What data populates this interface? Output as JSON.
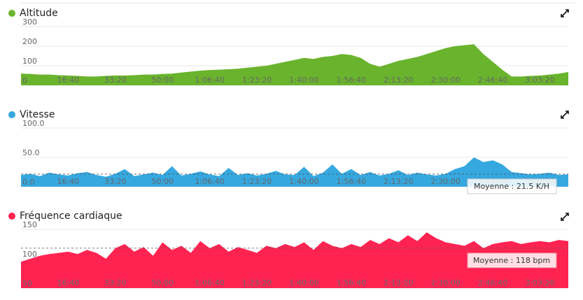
{
  "chart_data": [
    {
      "type": "area",
      "title": "Altitude",
      "color": "#6ab42d",
      "x": [
        0,
        200,
        400,
        600,
        800,
        1000,
        1200,
        1400,
        1600,
        1800,
        2000,
        2200,
        2400,
        2600,
        2800,
        3000,
        3200,
        3400,
        3600,
        3800,
        4000,
        4200,
        4400,
        4600,
        4800,
        5000,
        5200,
        5400,
        5600,
        5800,
        6000,
        6200,
        6400,
        6600,
        6800,
        7000,
        7200,
        7400,
        7600,
        7800,
        8000,
        8200,
        8400,
        8600,
        8800,
        9000,
        9200,
        9400,
        9600,
        9800,
        10000,
        10200,
        10400,
        10600,
        10800,
        11000,
        11200,
        11400,
        11600
      ],
      "values": [
        60,
        58,
        55,
        55,
        52,
        50,
        48,
        45,
        45,
        48,
        50,
        50,
        52,
        55,
        55,
        58,
        60,
        65,
        70,
        75,
        78,
        80,
        82,
        85,
        90,
        95,
        100,
        110,
        120,
        130,
        140,
        135,
        145,
        150,
        160,
        155,
        140,
        110,
        95,
        110,
        125,
        135,
        145,
        160,
        175,
        190,
        200,
        205,
        210,
        160,
        120,
        80,
        45,
        45,
        48,
        50,
        55,
        60,
        68
      ],
      "xlim": [
        0,
        11600
      ],
      "xticks": [
        {
          "value": 1000,
          "label": "16:40"
        },
        {
          "value": 2000,
          "label": "33:20"
        },
        {
          "value": 3000,
          "label": "50:00"
        },
        {
          "value": 4000,
          "label": "1:06:40"
        },
        {
          "value": 5000,
          "label": "1:23:20"
        },
        {
          "value": 6000,
          "label": "1:40:00"
        },
        {
          "value": 7000,
          "label": "1:56:40"
        },
        {
          "value": 8000,
          "label": "2:13:20"
        },
        {
          "value": 9000,
          "label": "2:30:00"
        },
        {
          "value": 10000,
          "label": "2:46:40"
        },
        {
          "value": 11000,
          "label": "3:03:20"
        }
      ],
      "ylim": [
        0,
        300
      ],
      "yticks": [
        0,
        100,
        200,
        300
      ],
      "grid": true
    },
    {
      "type": "area",
      "title": "Vitesse",
      "color": "#35a8e0",
      "x": [
        0,
        200,
        400,
        600,
        800,
        1000,
        1200,
        1400,
        1600,
        1800,
        2000,
        2200,
        2400,
        2600,
        2800,
        3000,
        3200,
        3400,
        3600,
        3800,
        4000,
        4200,
        4400,
        4600,
        4800,
        5000,
        5200,
        5400,
        5600,
        5800,
        6000,
        6200,
        6400,
        6600,
        6800,
        7000,
        7200,
        7400,
        7600,
        7800,
        8000,
        8200,
        8400,
        8600,
        8800,
        9000,
        9200,
        9400,
        9600,
        9800,
        10000,
        10200,
        10400,
        10600,
        10800,
        11000,
        11200,
        11400,
        11600
      ],
      "values": [
        20,
        22,
        18,
        24,
        21,
        19,
        23,
        25,
        20,
        17,
        22,
        30,
        18,
        21,
        24,
        20,
        35,
        19,
        22,
        26,
        21,
        18,
        32,
        20,
        23,
        19,
        22,
        27,
        21,
        20,
        34,
        18,
        24,
        38,
        22,
        30,
        20,
        25,
        19,
        22,
        28,
        20,
        24,
        21,
        19,
        22,
        30,
        35,
        50,
        42,
        45,
        38,
        25,
        23,
        21,
        22,
        24,
        20,
        21
      ],
      "xlim": [
        0,
        11600
      ],
      "xticks": [
        {
          "value": 1000,
          "label": "16:40"
        },
        {
          "value": 2000,
          "label": "33:20"
        },
        {
          "value": 3000,
          "label": "50:00"
        },
        {
          "value": 4000,
          "label": "1:06:40"
        },
        {
          "value": 5000,
          "label": "1:23:20"
        },
        {
          "value": 6000,
          "label": "1:40:00"
        },
        {
          "value": 7000,
          "label": "1:56:40"
        },
        {
          "value": 8000,
          "label": "2:13:20"
        },
        {
          "value": 9000,
          "label": "2:30:00"
        },
        {
          "value": 10000,
          "label": "2:46:40"
        },
        {
          "value": 11000,
          "label": "3:03:20"
        }
      ],
      "ylim": [
        0,
        100
      ],
      "yticks": [
        {
          "value": 0,
          "label": "0.0"
        },
        {
          "value": 50,
          "label": "50.0"
        },
        {
          "value": 100,
          "label": "100.0"
        }
      ],
      "grid": true,
      "average": 21.5,
      "average_label": "Moyenne : 21.5 K/H"
    },
    {
      "type": "area",
      "title": "Fréquence cardiaque",
      "color": "#ff2352",
      "x": [
        0,
        200,
        400,
        600,
        800,
        1000,
        1200,
        1400,
        1600,
        1800,
        2000,
        2200,
        2400,
        2600,
        2800,
        3000,
        3200,
        3400,
        3600,
        3800,
        4000,
        4200,
        4400,
        4600,
        4800,
        5000,
        5200,
        5400,
        5600,
        5800,
        6000,
        6200,
        6400,
        6600,
        6800,
        7000,
        7200,
        7400,
        7600,
        7800,
        8000,
        8200,
        8400,
        8600,
        8800,
        9000,
        9200,
        9400,
        9600,
        9800,
        10000,
        10200,
        10400,
        10600,
        10800,
        11000,
        11200,
        11400,
        11600
      ],
      "values": [
        95,
        100,
        105,
        108,
        110,
        112,
        108,
        115,
        110,
        100,
        118,
        125,
        112,
        120,
        105,
        128,
        115,
        122,
        110,
        130,
        118,
        125,
        112,
        120,
        115,
        110,
        122,
        118,
        125,
        120,
        128,
        115,
        130,
        122,
        118,
        125,
        120,
        132,
        125,
        135,
        128,
        140,
        130,
        145,
        135,
        128,
        125,
        122,
        130,
        118,
        125,
        128,
        130,
        125,
        128,
        130,
        128,
        132,
        130
      ],
      "xlim": [
        0,
        11600
      ],
      "xticks": [
        {
          "value": 1000,
          "label": "16:40"
        },
        {
          "value": 2000,
          "label": "33:20"
        },
        {
          "value": 3000,
          "label": "50:00"
        },
        {
          "value": 4000,
          "label": "1:06:40"
        },
        {
          "value": 5000,
          "label": "1:23:20"
        },
        {
          "value": 6000,
          "label": "1:40:00"
        },
        {
          "value": 7000,
          "label": "1:56:40"
        },
        {
          "value": 8000,
          "label": "2:13:20"
        },
        {
          "value": 9000,
          "label": "2:30:00"
        },
        {
          "value": 10000,
          "label": "2:46:40"
        },
        {
          "value": 11000,
          "label": "3:03:20"
        }
      ],
      "ylim": [
        50,
        150
      ],
      "yticks": [
        50,
        100,
        150
      ],
      "grid": true,
      "average": 118,
      "average_label": "Moyenne : 118 bpm"
    }
  ]
}
